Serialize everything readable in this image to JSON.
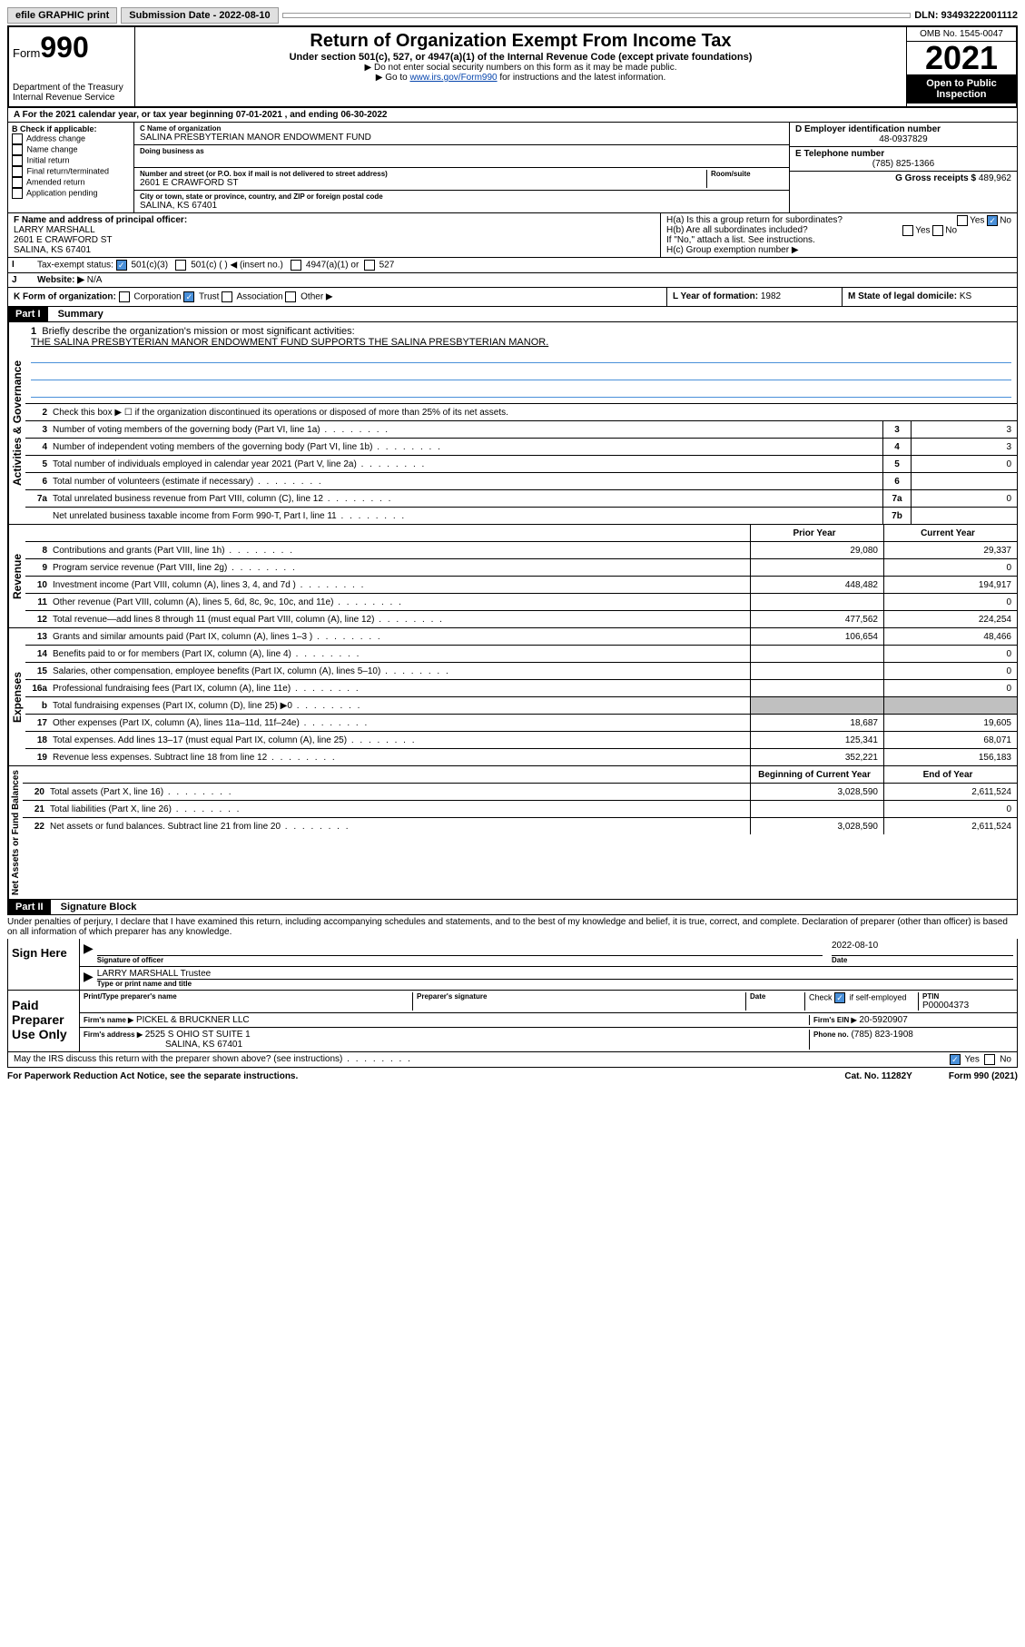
{
  "topbar": {
    "efile": "efile GRAPHIC print",
    "submission_label": "Submission Date - 2022-08-10",
    "dln_label": "DLN: 93493222001112"
  },
  "header": {
    "form_prefix": "Form",
    "form_number": "990",
    "dept": "Department of the Treasury\nInternal Revenue Service",
    "title": "Return of Organization Exempt From Income Tax",
    "sub": "Under section 501(c), 527, or 4947(a)(1) of the Internal Revenue Code (except private foundations)",
    "note1": "▶ Do not enter social security numbers on this form as it may be made public.",
    "note2_pre": "▶ Go to ",
    "note2_link": "www.irs.gov/Form990",
    "note2_post": " for instructions and the latest information.",
    "omb": "OMB No. 1545-0047",
    "year": "2021",
    "inspection": "Open to Public Inspection"
  },
  "blockA": {
    "period": "A For the 2021 calendar year, or tax year beginning 07-01-2021  , and ending 06-30-2022",
    "b_label": "B Check if applicable:",
    "b_items": [
      "Address change",
      "Name change",
      "Initial return",
      "Final return/terminated",
      "Amended return",
      "Application pending"
    ],
    "c_name_label": "C Name of organization",
    "c_name": "SALINA PRESBYTERIAN MANOR ENDOWMENT FUND",
    "dba_label": "Doing business as",
    "addr_label": "Number and street (or P.O. box if mail is not delivered to street address)",
    "room_label": "Room/suite",
    "addr": "2601 E CRAWFORD ST",
    "city_label": "City or town, state or province, country, and ZIP or foreign postal code",
    "city": "SALINA, KS  67401",
    "d_label": "D Employer identification number",
    "d_val": "48-0937829",
    "e_label": "E Telephone number",
    "e_val": "(785) 825-1366",
    "g_label": "G Gross receipts $",
    "g_val": "489,962",
    "f_label": "F Name and address of principal officer:",
    "f_name": "LARRY MARSHALL",
    "f_addr1": "2601 E CRAWFORD ST",
    "f_addr2": "SALINA, KS  67401",
    "ha_label": "H(a)  Is this a group return for subordinates?",
    "hb_label": "H(b)  Are all subordinates included?",
    "h_note": "If \"No,\" attach a list. See instructions.",
    "hc_label": "H(c)  Group exemption number ▶",
    "i_label": "Tax-exempt status:",
    "i_501c3": "501(c)(3)",
    "i_501c": "501(c) (  ) ◀ (insert no.)",
    "i_4947": "4947(a)(1) or",
    "i_527": "527",
    "j_label": "Website: ▶",
    "j_val": "N/A",
    "k_label": "K Form of organization:",
    "k_corp": "Corporation",
    "k_trust": "Trust",
    "k_assoc": "Association",
    "k_other": "Other ▶",
    "l_label": "L Year of formation:",
    "l_val": "1982",
    "m_label": "M State of legal domicile:",
    "m_val": "KS",
    "yes": "Yes",
    "no": "No"
  },
  "part1": {
    "header": "Part I",
    "title": "Summary",
    "line1_label": "Briefly describe the organization's mission or most significant activities:",
    "line1_text": "THE SALINA PRESBYTERIAN MANOR ENDOWMENT FUND SUPPORTS THE SALINA PRESBYTERIAN MANOR.",
    "line2": "Check this box ▶ ☐  if the organization discontinued its operations or disposed of more than 25% of its net assets.",
    "sections": {
      "gov": "Activities & Governance",
      "rev": "Revenue",
      "exp": "Expenses",
      "net": "Net Assets or Fund Balances"
    },
    "lines": [
      {
        "n": "3",
        "t": "Number of voting members of the governing body (Part VI, line 1a)",
        "b": "3",
        "v2": "3"
      },
      {
        "n": "4",
        "t": "Number of independent voting members of the governing body (Part VI, line 1b)",
        "b": "4",
        "v2": "3"
      },
      {
        "n": "5",
        "t": "Total number of individuals employed in calendar year 2021 (Part V, line 2a)",
        "b": "5",
        "v2": "0"
      },
      {
        "n": "6",
        "t": "Total number of volunteers (estimate if necessary)",
        "b": "6",
        "v2": ""
      },
      {
        "n": "7a",
        "t": "Total unrelated business revenue from Part VIII, column (C), line 12",
        "b": "7a",
        "v2": "0"
      },
      {
        "n": "",
        "t": "Net unrelated business taxable income from Form 990-T, Part I, line 11",
        "b": "7b",
        "v2": ""
      }
    ],
    "col_prior": "Prior Year",
    "col_current": "Current Year",
    "rev_lines": [
      {
        "n": "8",
        "t": "Contributions and grants (Part VIII, line 1h)",
        "p": "29,080",
        "c": "29,337"
      },
      {
        "n": "9",
        "t": "Program service revenue (Part VIII, line 2g)",
        "p": "",
        "c": "0"
      },
      {
        "n": "10",
        "t": "Investment income (Part VIII, column (A), lines 3, 4, and 7d )",
        "p": "448,482",
        "c": "194,917"
      },
      {
        "n": "11",
        "t": "Other revenue (Part VIII, column (A), lines 5, 6d, 8c, 9c, 10c, and 11e)",
        "p": "",
        "c": "0"
      },
      {
        "n": "12",
        "t": "Total revenue—add lines 8 through 11 (must equal Part VIII, column (A), line 12)",
        "p": "477,562",
        "c": "224,254"
      }
    ],
    "exp_lines": [
      {
        "n": "13",
        "t": "Grants and similar amounts paid (Part IX, column (A), lines 1–3 )",
        "p": "106,654",
        "c": "48,466"
      },
      {
        "n": "14",
        "t": "Benefits paid to or for members (Part IX, column (A), line 4)",
        "p": "",
        "c": "0"
      },
      {
        "n": "15",
        "t": "Salaries, other compensation, employee benefits (Part IX, column (A), lines 5–10)",
        "p": "",
        "c": "0"
      },
      {
        "n": "16a",
        "t": "Professional fundraising fees (Part IX, column (A), line 11e)",
        "p": "",
        "c": "0"
      },
      {
        "n": "b",
        "t": "Total fundraising expenses (Part IX, column (D), line 25) ▶0",
        "p": "grey",
        "c": "grey"
      },
      {
        "n": "17",
        "t": "Other expenses (Part IX, column (A), lines 11a–11d, 11f–24e)",
        "p": "18,687",
        "c": "19,605"
      },
      {
        "n": "18",
        "t": "Total expenses. Add lines 13–17 (must equal Part IX, column (A), line 25)",
        "p": "125,341",
        "c": "68,071"
      },
      {
        "n": "19",
        "t": "Revenue less expenses. Subtract line 18 from line 12",
        "p": "352,221",
        "c": "156,183"
      }
    ],
    "col_begin": "Beginning of Current Year",
    "col_end": "End of Year",
    "net_lines": [
      {
        "n": "20",
        "t": "Total assets (Part X, line 16)",
        "p": "3,028,590",
        "c": "2,611,524"
      },
      {
        "n": "21",
        "t": "Total liabilities (Part X, line 26)",
        "p": "",
        "c": "0"
      },
      {
        "n": "22",
        "t": "Net assets or fund balances. Subtract line 21 from line 20",
        "p": "3,028,590",
        "c": "2,611,524"
      }
    ]
  },
  "part2": {
    "header": "Part II",
    "title": "Signature Block",
    "penalties": "Under penalties of perjury, I declare that I have examined this return, including accompanying schedules and statements, and to the best of my knowledge and belief, it is true, correct, and complete. Declaration of preparer (other than officer) is based on all information of which preparer has any knowledge.",
    "sign_here": "Sign Here",
    "sig_officer": "Signature of officer",
    "sig_date": "2022-08-10",
    "date_label": "Date",
    "officer_name": "LARRY MARSHALL Trustee",
    "type_name": "Type or print name and title",
    "paid": "Paid Preparer Use Only",
    "prep_name_label": "Print/Type preparer's name",
    "prep_sig_label": "Preparer's signature",
    "check_self": "Check ☑ if self-employed",
    "ptin_label": "PTIN",
    "ptin": "P00004373",
    "firm_name_label": "Firm's name  ▶",
    "firm_name": "PICKEL & BRUCKNER LLC",
    "firm_ein_label": "Firm's EIN ▶",
    "firm_ein": "20-5920907",
    "firm_addr_label": "Firm's address ▶",
    "firm_addr1": "2525 S OHIO ST SUITE 1",
    "firm_addr2": "SALINA, KS  67401",
    "phone_label": "Phone no.",
    "phone": "(785) 823-1908",
    "may_irs": "May the IRS discuss this return with the preparer shown above? (see instructions)"
  },
  "footer": {
    "left": "For Paperwork Reduction Act Notice, see the separate instructions.",
    "mid": "Cat. No. 11282Y",
    "right": "Form 990 (2021)"
  }
}
